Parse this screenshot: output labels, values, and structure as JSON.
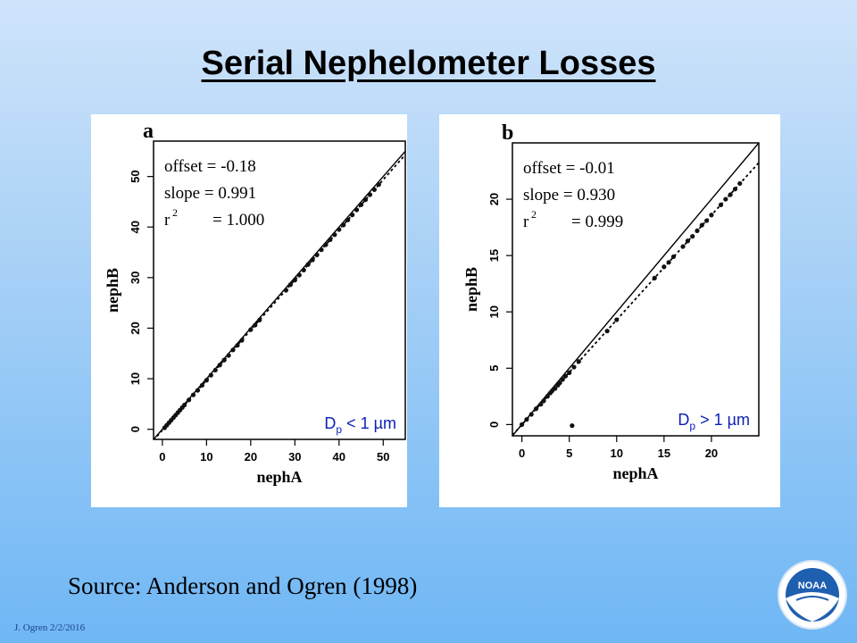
{
  "title": "Serial Nephelometer Losses",
  "source": "Source: Anderson and Ogren (1998)",
  "footer": "J. Ogren  2/2/2016",
  "logo_text": "NOAA",
  "colors": {
    "accent_text": "#1d3f8a",
    "logo_blue": "#1f5fb0"
  },
  "chart_data": [
    {
      "type": "scatter",
      "panel_label": "a",
      "xlabel": "nephA",
      "ylabel": "nephB",
      "xlim": [
        -2,
        55
      ],
      "ylim": [
        -2,
        57
      ],
      "xticks": [
        0,
        10,
        20,
        30,
        40,
        50
      ],
      "yticks": [
        0,
        10,
        20,
        30,
        40,
        50
      ],
      "stats": {
        "offset": "offset = -0.18",
        "slope": "slope = 0.991",
        "r2_label": "r",
        "r2_sup": "2",
        "r2_value": "= 1.000"
      },
      "size_label": {
        "prefix": "D",
        "sub": "p",
        "rest": " < 1 µm"
      },
      "lines": [
        {
          "name": "1:1",
          "style": "solid",
          "intercept": 0,
          "slope": 1
        },
        {
          "name": "fit",
          "style": "dotted",
          "intercept": -0.18,
          "slope": 0.991
        }
      ],
      "points": [
        [
          0.5,
          0.3
        ],
        [
          1,
          0.8
        ],
        [
          1.5,
          1.3
        ],
        [
          2,
          1.8
        ],
        [
          2.5,
          2.3
        ],
        [
          3,
          2.8
        ],
        [
          3.5,
          3.3
        ],
        [
          4,
          3.8
        ],
        [
          4.5,
          4.3
        ],
        [
          5,
          4.8
        ],
        [
          6,
          5.8
        ],
        [
          7,
          6.8
        ],
        [
          8,
          7.7
        ],
        [
          9,
          8.7
        ],
        [
          10,
          9.7
        ],
        [
          11,
          10.7
        ],
        [
          12,
          11.7
        ],
        [
          13,
          12.7
        ],
        [
          14,
          13.7
        ],
        [
          15,
          14.6
        ],
        [
          16,
          15.7
        ],
        [
          17,
          16.6
        ],
        [
          18,
          17.6
        ],
        [
          20,
          19.7
        ],
        [
          21,
          20.6
        ],
        [
          22,
          21.6
        ],
        [
          28,
          27.5
        ],
        [
          29,
          28.6
        ],
        [
          30,
          29.5
        ],
        [
          31,
          30.5
        ],
        [
          32,
          31.5
        ],
        [
          33,
          32.6
        ],
        [
          34,
          33.5
        ],
        [
          35,
          34.5
        ],
        [
          36,
          35.5
        ],
        [
          37,
          36.5
        ],
        [
          38,
          37.5
        ],
        [
          39,
          38.5
        ],
        [
          40,
          39.5
        ],
        [
          41,
          40.4
        ],
        [
          42,
          41.4
        ],
        [
          43,
          42.4
        ],
        [
          44,
          43.4
        ],
        [
          45,
          44.4
        ],
        [
          46,
          45.4
        ],
        [
          47,
          46.4
        ],
        [
          48,
          47.4
        ],
        [
          49,
          48.4
        ]
      ]
    },
    {
      "type": "scatter",
      "panel_label": "b",
      "xlabel": "nephA",
      "ylabel": "nephB",
      "xlim": [
        -1,
        25
      ],
      "ylim": [
        -1,
        25
      ],
      "xticks": [
        0,
        5,
        10,
        15,
        20
      ],
      "yticks": [
        0,
        5,
        10,
        15,
        20
      ],
      "stats": {
        "offset": "offset = -0.01",
        "slope": "slope = 0.930",
        "r2_label": "r",
        "r2_sup": "2",
        "r2_value": "= 0.999"
      },
      "size_label": {
        "prefix": "D",
        "sub": "p",
        "rest": " > 1 µm"
      },
      "lines": [
        {
          "name": "1:1",
          "style": "solid",
          "intercept": 0,
          "slope": 1
        },
        {
          "name": "fit",
          "style": "dotted",
          "intercept": -0.01,
          "slope": 0.93
        }
      ],
      "points": [
        [
          0,
          0
        ],
        [
          0.5,
          0.45
        ],
        [
          1,
          0.9
        ],
        [
          1.5,
          1.4
        ],
        [
          2,
          1.8
        ],
        [
          2.3,
          2.1
        ],
        [
          2.7,
          2.5
        ],
        [
          3,
          2.8
        ],
        [
          3.2,
          3.0
        ],
        [
          3.5,
          3.2
        ],
        [
          3.8,
          3.5
        ],
        [
          4,
          3.7
        ],
        [
          4.3,
          4.0
        ],
        [
          4.6,
          4.3
        ],
        [
          5,
          4.6
        ],
        [
          5.5,
          5.1
        ],
        [
          6,
          5.6
        ],
        [
          9,
          8.3
        ],
        [
          10,
          9.3
        ],
        [
          14,
          13.0
        ],
        [
          15,
          14.0
        ],
        [
          15.5,
          14.4
        ],
        [
          16,
          14.9
        ],
        [
          17,
          15.8
        ],
        [
          17.5,
          16.3
        ],
        [
          18,
          16.7
        ],
        [
          18.5,
          17.2
        ],
        [
          19,
          17.7
        ],
        [
          19.5,
          18.1
        ],
        [
          20,
          18.6
        ],
        [
          21,
          19.5
        ],
        [
          21.5,
          20.0
        ],
        [
          22,
          20.4
        ],
        [
          22.5,
          20.9
        ],
        [
          23,
          21.4
        ],
        [
          5.3,
          -0.1
        ]
      ]
    }
  ]
}
